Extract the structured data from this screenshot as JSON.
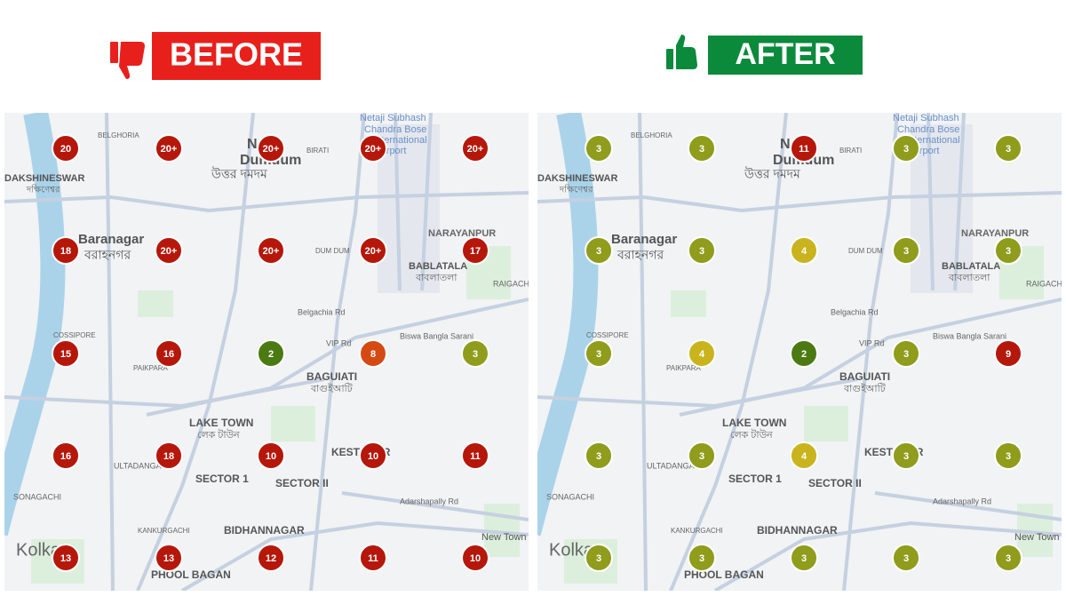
{
  "before": {
    "label": "BEFORE",
    "markers": [
      [
        {
          "label": "20",
          "color": "#b5170b"
        },
        {
          "label": "20+",
          "color": "#b5170b"
        },
        {
          "label": "20+",
          "color": "#b5170b"
        },
        {
          "label": "20+",
          "color": "#b5170b"
        },
        {
          "label": "20+",
          "color": "#b5170b"
        }
      ],
      [
        {
          "label": "18",
          "color": "#b5170b"
        },
        {
          "label": "20+",
          "color": "#b5170b"
        },
        {
          "label": "20+",
          "color": "#b5170b"
        },
        {
          "label": "20+",
          "color": "#b5170b"
        },
        {
          "label": "17",
          "color": "#b5170b"
        }
      ],
      [
        {
          "label": "15",
          "color": "#b5170b"
        },
        {
          "label": "16",
          "color": "#b5170b"
        },
        {
          "label": "2",
          "color": "#4c7a12"
        },
        {
          "label": "8",
          "color": "#d44a12"
        },
        {
          "label": "3",
          "color": "#8f9c1c"
        }
      ],
      [
        {
          "label": "16",
          "color": "#b5170b"
        },
        {
          "label": "18",
          "color": "#b5170b"
        },
        {
          "label": "10",
          "color": "#b5170b"
        },
        {
          "label": "10",
          "color": "#b5170b"
        },
        {
          "label": "11",
          "color": "#b5170b"
        }
      ],
      [
        {
          "label": "13",
          "color": "#b5170b"
        },
        {
          "label": "13",
          "color": "#b5170b"
        },
        {
          "label": "12",
          "color": "#b5170b"
        },
        {
          "label": "11",
          "color": "#b5170b"
        },
        {
          "label": "10",
          "color": "#b5170b"
        }
      ]
    ]
  },
  "after": {
    "label": "AFTER",
    "markers": [
      [
        {
          "label": "3",
          "color": "#8f9c1c"
        },
        {
          "label": "3",
          "color": "#8f9c1c"
        },
        {
          "label": "11",
          "color": "#b5170b"
        },
        {
          "label": "3",
          "color": "#8f9c1c"
        },
        {
          "label": "3",
          "color": "#8f9c1c"
        }
      ],
      [
        {
          "label": "3",
          "color": "#8f9c1c"
        },
        {
          "label": "3",
          "color": "#8f9c1c"
        },
        {
          "label": "4",
          "color": "#c9b41e"
        },
        {
          "label": "3",
          "color": "#8f9c1c"
        },
        {
          "label": "3",
          "color": "#8f9c1c"
        }
      ],
      [
        {
          "label": "3",
          "color": "#8f9c1c"
        },
        {
          "label": "4",
          "color": "#c9b41e"
        },
        {
          "label": "2",
          "color": "#4c7a12"
        },
        {
          "label": "3",
          "color": "#8f9c1c"
        },
        {
          "label": "9",
          "color": "#b5170b"
        }
      ],
      [
        {
          "label": "3",
          "color": "#8f9c1c"
        },
        {
          "label": "3",
          "color": "#8f9c1c"
        },
        {
          "label": "4",
          "color": "#c9b41e"
        },
        {
          "label": "3",
          "color": "#8f9c1c"
        },
        {
          "label": "3",
          "color": "#8f9c1c"
        }
      ],
      [
        {
          "label": "3",
          "color": "#8f9c1c"
        },
        {
          "label": "3",
          "color": "#8f9c1c"
        },
        {
          "label": "3",
          "color": "#8f9c1c"
        },
        {
          "label": "3",
          "color": "#8f9c1c"
        },
        {
          "label": "3",
          "color": "#8f9c1c"
        }
      ]
    ]
  },
  "map_labels": [
    "North",
    "Dumdum",
    "উত্তর দমদম",
    "DAKSHINESWAR",
    "দক্ষিণেশ্বর",
    "Baranagar",
    "বরাহনগর",
    "NARAYANPUR",
    "BABLATALA",
    "বাবলাতলা",
    "RAIGACHI",
    "Netaji Subhash",
    "Chandra Bose",
    "International",
    "Airport",
    "BELGHORIA",
    "BIRATI",
    "DUM DUM",
    "COSSIPORE",
    "PAIKPARA",
    "BAGUIATI",
    "বাগুইআটি",
    "LAKE TOWN",
    "লেক টাউন",
    "KESTOPUR",
    "SECTOR 1",
    "SECTOR II",
    "SONAGACHI",
    "ULTADANGA",
    "KANKURGACHI",
    "BIDHANNAGAR",
    "PHOOL BAGAN",
    "Kolkata",
    "New Town",
    "Belgachia Rd",
    "Biswa Bangla Sarani",
    "Adarshapally Rd",
    "VIP Rd"
  ]
}
